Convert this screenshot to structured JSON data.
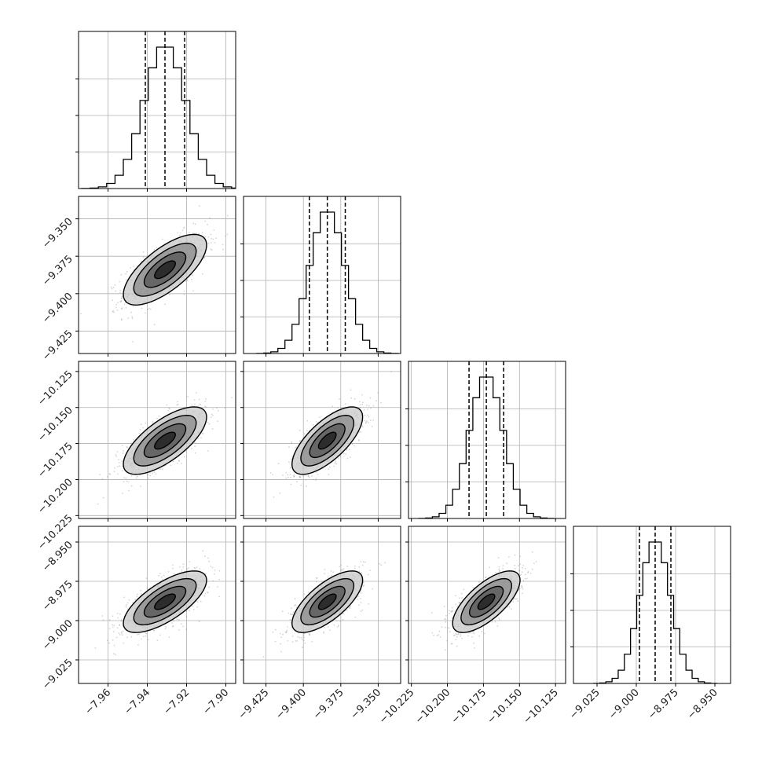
{
  "chart_data": {
    "type": "corner",
    "colors": {
      "line": "#000000",
      "grid": "#b0b0b0",
      "scatter": "#888888"
    },
    "parameters": [
      {
        "center": -7.931,
        "sigma": 0.0106,
        "quantiles": [
          -7.941,
          -7.931,
          -7.921
        ],
        "range": [
          -7.975,
          -7.895
        ],
        "ticks": [
          -7.96,
          -7.94,
          -7.92,
          -7.9
        ],
        "tick_labels": [
          "−7.96",
          "−7.94",
          "−7.92",
          "−7.90"
        ]
      },
      {
        "center": -9.384,
        "sigma": 0.0118,
        "quantiles": [
          -9.396,
          -9.384,
          -9.372
        ],
        "range": [
          -9.44,
          -9.335
        ],
        "ticks": [
          -9.425,
          -9.4,
          -9.375,
          -9.35
        ],
        "tick_labels": [
          "−9.425",
          "−9.400",
          "−9.375",
          "−9.350"
        ]
      },
      {
        "center": -10.173,
        "sigma": 0.0117,
        "quantiles": [
          -10.185,
          -10.173,
          -10.161
        ],
        "range": [
          -10.227,
          -10.118
        ],
        "ticks": [
          -10.225,
          -10.2,
          -10.175,
          -10.15,
          -10.125
        ],
        "tick_labels": [
          "−10.225",
          "−10.200",
          "−10.175",
          "−10.150",
          "−10.125"
        ]
      },
      {
        "center": -8.988,
        "sigma": 0.0098,
        "quantiles": [
          -8.998,
          -8.988,
          -8.978
        ],
        "range": [
          -9.04,
          -8.94
        ],
        "ticks": [
          -9.025,
          -9.0,
          -8.975,
          -8.95
        ],
        "tick_labels": [
          "−9.025",
          "−9.000",
          "−8.975",
          "−8.950"
        ]
      }
    ],
    "correlations": [
      [
        1.0,
        0.7,
        0.7,
        0.7
      ],
      [
        0.7,
        1.0,
        0.7,
        0.7
      ],
      [
        0.7,
        0.7,
        1.0,
        0.7
      ],
      [
        0.7,
        0.7,
        0.7,
        1.0
      ]
    ],
    "histogram_bins": 20,
    "contour_levels_sigma": [
      0.5,
      1.0,
      1.5,
      2.0
    ],
    "grid": true
  }
}
